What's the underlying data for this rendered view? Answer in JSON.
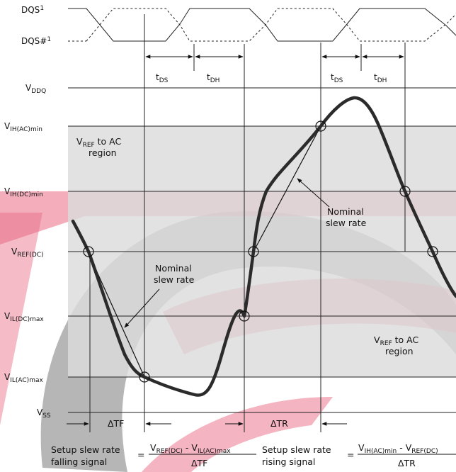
{
  "signals": {
    "dqs": {
      "name": "DQS",
      "sup": "1"
    },
    "dqs_n": {
      "name": "DQS#",
      "sup": "1"
    }
  },
  "timing": {
    "tds": {
      "main": "t",
      "sub": "DS"
    },
    "tdh": {
      "main": "t",
      "sub": "DH"
    }
  },
  "levels": {
    "vddq": {
      "main": "V",
      "sub": "DDQ"
    },
    "vih_ac": {
      "main": "V",
      "sub": "IH(AC)min"
    },
    "vih_dc": {
      "main": "V",
      "sub": "IH(DC)min"
    },
    "vref": {
      "main": "V",
      "sub": "REF(DC)"
    },
    "vil_dc": {
      "main": "V",
      "sub": "IL(DC)max"
    },
    "vil_ac": {
      "main": "V",
      "sub": "IL(AC)max"
    },
    "vss": {
      "main": "V",
      "sub": "SS"
    }
  },
  "regions": {
    "upper": {
      "main": "V",
      "sub": "REF",
      "rest": " to AC",
      "line2": "region"
    },
    "lower": {
      "main": "V",
      "sub": "REF",
      "rest": " to AC",
      "line2": "region"
    }
  },
  "annotations": {
    "nominal_falling": {
      "line1": "Nominal",
      "line2": "slew rate"
    },
    "nominal_rising": {
      "line1": "Nominal",
      "line2": "slew rate"
    },
    "delta_tf": "ΔTF",
    "delta_tr": "ΔTR"
  },
  "formulas": {
    "falling": {
      "label1": "Setup slew rate",
      "label2": "falling signal",
      "eq": "=",
      "num_a": {
        "main": "V",
        "sub": "REF(DC)"
      },
      "minus": " - ",
      "num_b": {
        "main": "V",
        "sub": "IL(AC)max"
      },
      "den": "ΔTF"
    },
    "rising": {
      "label1": "Setup slew rate",
      "label2": "rising signal",
      "eq": "=",
      "num_a": {
        "main": "V",
        "sub": "IH(AC)min"
      },
      "minus": " - ",
      "num_b": {
        "main": "V",
        "sub": "REF(DC)"
      },
      "den": "ΔTR"
    }
  },
  "colors": {
    "region_fill": "#dcdcdc",
    "waveform": "#2b2b2b",
    "watermark_red": "#e6506e",
    "watermark_gray": "#8c8c8c"
  }
}
